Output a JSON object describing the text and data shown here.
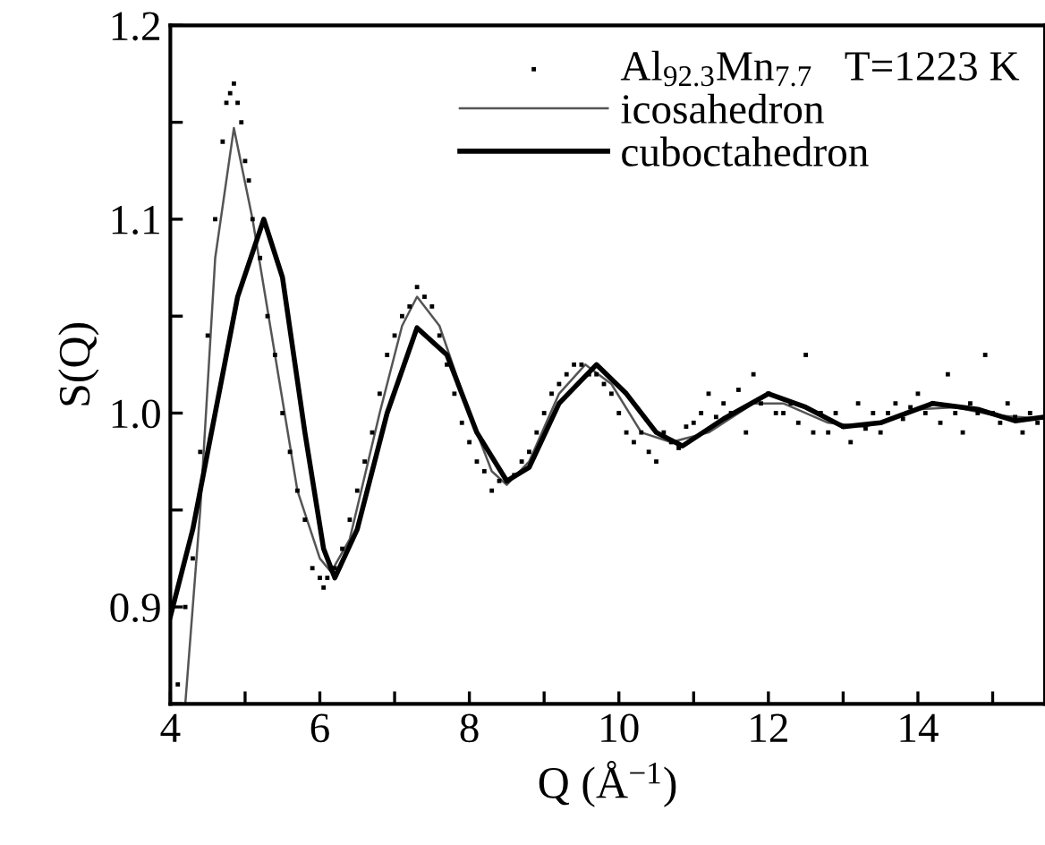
{
  "chart_data": {
    "type": "line",
    "xlabel": "Q (Å$^{−1}$)",
    "ylabel": "S(Q)",
    "xlim": [
      4,
      15.7
    ],
    "ylim": [
      0.85,
      1.2
    ],
    "xticks": [
      4,
      {
        "value": 5,
        "label": null
      },
      6,
      {
        "value": 7,
        "label": null
      },
      8,
      {
        "value": 9,
        "label": null
      },
      10,
      {
        "value": 11,
        "label": null
      },
      12,
      {
        "value": 13,
        "label": null
      },
      14,
      {
        "value": 15,
        "label": null
      }
    ],
    "yticks": [
      {
        "value": 0.85,
        "label": null
      },
      0.9,
      {
        "value": 0.95,
        "label": null
      },
      {
        "value": 1.0,
        "label": "1.0"
      },
      {
        "value": 1.05,
        "label": null
      },
      1.1,
      {
        "value": 1.15,
        "label": null
      },
      1.2
    ],
    "grid": false,
    "legend": "top right",
    "series": [
      {
        "name": "Al$_{92.3}$Mn$_{7.7}$   T=1223 K",
        "type": "scatter",
        "marker": "square",
        "color": "#000000",
        "x": [
          4.1,
          4.2,
          4.3,
          4.4,
          4.5,
          4.6,
          4.7,
          4.75,
          4.8,
          4.85,
          4.9,
          4.95,
          5.0,
          5.05,
          5.1,
          5.2,
          5.3,
          5.4,
          5.5,
          5.6,
          5.7,
          5.8,
          5.9,
          6.0,
          6.05,
          6.1,
          6.15,
          6.2,
          6.3,
          6.4,
          6.5,
          6.6,
          6.7,
          6.8,
          6.9,
          7.0,
          7.1,
          7.2,
          7.3,
          7.4,
          7.5,
          7.6,
          7.7,
          7.8,
          7.9,
          8.0,
          8.1,
          8.2,
          8.3,
          8.4,
          8.5,
          8.6,
          8.7,
          8.8,
          8.9,
          9.0,
          9.1,
          9.2,
          9.3,
          9.4,
          9.5,
          9.6,
          9.7,
          9.8,
          9.9,
          10.0,
          10.1,
          10.2,
          10.3,
          10.4,
          10.5,
          10.6,
          10.7,
          10.8,
          10.9,
          11.0,
          11.1,
          11.2,
          11.3,
          11.4,
          11.5,
          11.6,
          11.7,
          11.8,
          11.9,
          12.0,
          12.1,
          12.2,
          12.3,
          12.4,
          12.5,
          12.6,
          12.7,
          12.8,
          12.9,
          13.0,
          13.1,
          13.2,
          13.3,
          13.4,
          13.5,
          13.6,
          13.7,
          13.8,
          13.9,
          14.0,
          14.1,
          14.2,
          14.3,
          14.4,
          14.5,
          14.6,
          14.7,
          14.8,
          14.9,
          15.0,
          15.1,
          15.2,
          15.3,
          15.4,
          15.5,
          15.6
        ],
        "values": [
          0.86,
          0.9,
          0.925,
          0.98,
          1.04,
          1.1,
          1.14,
          1.16,
          1.165,
          1.17,
          1.16,
          1.15,
          1.13,
          1.12,
          1.1,
          1.08,
          1.05,
          1.03,
          1.0,
          0.98,
          0.96,
          0.945,
          0.92,
          0.915,
          0.91,
          0.915,
          0.92,
          0.92,
          0.93,
          0.945,
          0.96,
          0.975,
          0.99,
          1.01,
          1.03,
          1.04,
          1.05,
          1.055,
          1.065,
          1.06,
          1.055,
          1.04,
          1.025,
          1.01,
          0.995,
          0.985,
          0.975,
          0.97,
          0.96,
          0.965,
          0.965,
          0.968,
          0.975,
          0.98,
          0.99,
          1.0,
          1.01,
          1.015,
          1.02,
          1.025,
          1.025,
          1.02,
          1.02,
          1.015,
          1.01,
          1.0,
          0.99,
          0.985,
          0.99,
          0.98,
          0.975,
          0.99,
          0.985,
          0.982,
          0.993,
          0.995,
          1.0,
          1.01,
          0.998,
          1.005,
          1.0,
          1.012,
          0.99,
          1.02,
          1.005,
          1.01,
          1.0,
          1.0,
          1.005,
          0.995,
          1.03,
          0.99,
          1.0,
          0.99,
          1.0,
          0.993,
          0.985,
          1.005,
          0.992,
          1.0,
          0.99,
          1.0,
          1.005,
          0.997,
          1.003,
          1.01,
          1.0,
          1.005,
          0.995,
          1.02,
          1.0,
          0.99,
          1.005,
          1.0,
          1.03,
          1.0,
          0.995,
          1.005,
          0.998,
          0.99,
          1.0,
          0.995
        ]
      },
      {
        "name": "icosahedron",
        "color": "#555555",
        "x": [
          4.2,
          4.4,
          4.6,
          4.85,
          5.1,
          5.4,
          5.7,
          6.0,
          6.15,
          6.4,
          6.8,
          7.1,
          7.3,
          7.6,
          8.0,
          8.3,
          8.5,
          8.8,
          9.2,
          9.55,
          9.9,
          10.3,
          10.7,
          11.2,
          11.8,
          12.2,
          12.8,
          13.3,
          14.0,
          14.5,
          15.0,
          15.7
        ],
        "values": [
          0.85,
          0.95,
          1.08,
          1.147,
          1.1,
          1.03,
          0.96,
          0.925,
          0.918,
          0.935,
          1.0,
          1.045,
          1.06,
          1.045,
          1.0,
          0.97,
          0.963,
          0.975,
          1.01,
          1.025,
          1.015,
          0.99,
          0.985,
          0.99,
          1.005,
          1.005,
          0.995,
          0.993,
          1.002,
          1.003,
          0.999,
          0.997
        ]
      },
      {
        "name": "cuboctahedron",
        "color": "#000000",
        "x": [
          4.0,
          4.3,
          4.6,
          4.9,
          5.25,
          5.5,
          5.8,
          6.05,
          6.2,
          6.5,
          6.9,
          7.3,
          7.7,
          8.1,
          8.5,
          8.8,
          9.2,
          9.7,
          10.1,
          10.5,
          10.85,
          11.4,
          12.0,
          12.5,
          13.0,
          13.5,
          14.2,
          14.8,
          15.3,
          15.7
        ],
        "values": [
          0.895,
          0.94,
          1.0,
          1.06,
          1.1,
          1.07,
          0.99,
          0.93,
          0.915,
          0.94,
          1.0,
          1.044,
          1.03,
          0.99,
          0.965,
          0.972,
          1.005,
          1.025,
          1.01,
          0.99,
          0.983,
          0.997,
          1.01,
          1.003,
          0.993,
          0.995,
          1.005,
          1.002,
          0.996,
          0.998
        ]
      }
    ]
  }
}
